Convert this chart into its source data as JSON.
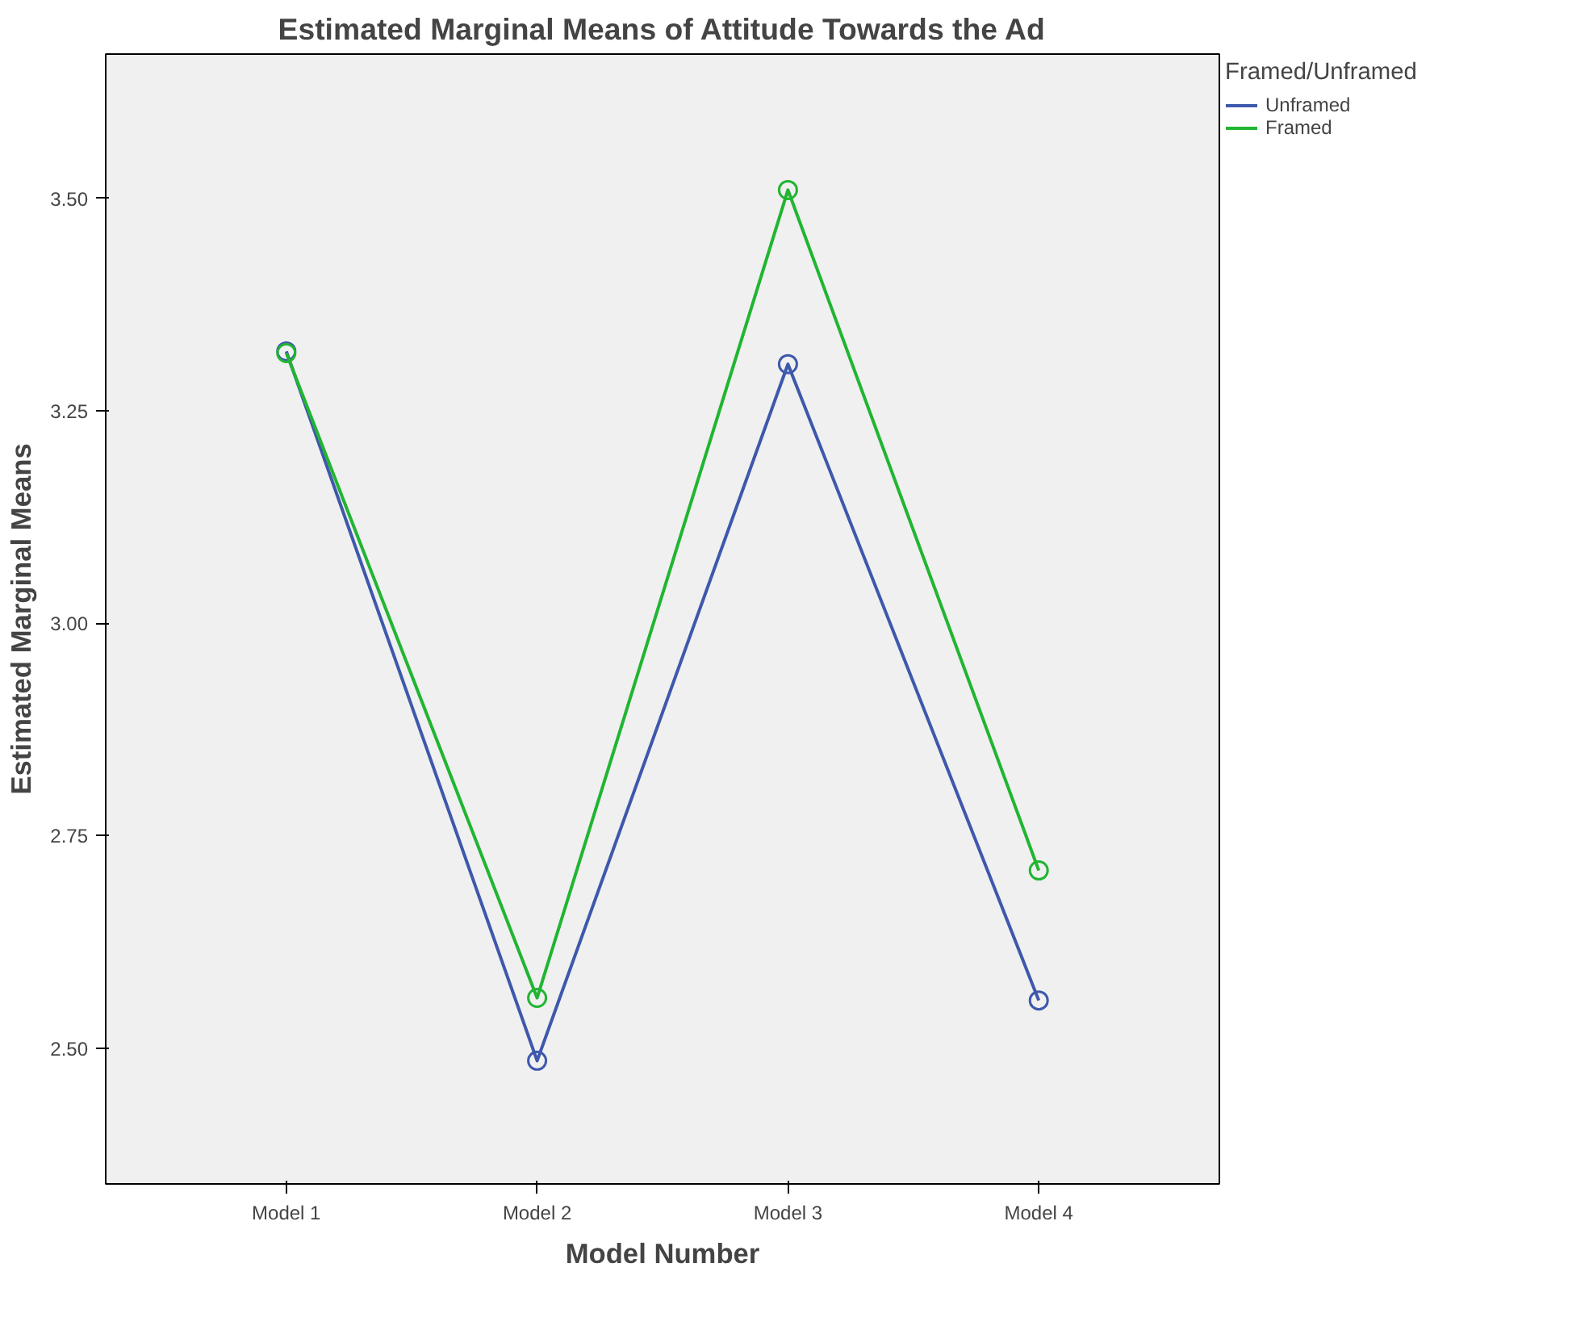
{
  "chart_data": {
    "type": "line",
    "title": "Estimated Marginal Means of Attitude Towards the Ad",
    "xlabel": "Model Number",
    "ylabel": "Estimated Marginal Means",
    "legend_title": "Framed/Unframed",
    "categories": [
      "Model 1",
      "Model 2",
      "Model 3",
      "Model 4"
    ],
    "series": [
      {
        "name": "Unframed",
        "color": "#3e58ac",
        "values": [
          3.32,
          2.485,
          3.305,
          2.556
        ]
      },
      {
        "name": "Framed",
        "color": "#21b532",
        "values": [
          3.318,
          2.559,
          3.51,
          2.709
        ]
      }
    ],
    "ylim": [
      2.34,
      3.67
    ],
    "yticks": [
      {
        "value": 2.5,
        "label": "2.50"
      },
      {
        "value": 2.75,
        "label": "2.75"
      },
      {
        "value": 3.0,
        "label": "3.00"
      },
      {
        "value": 3.25,
        "label": "3.25"
      },
      {
        "value": 3.5,
        "label": "3.50"
      }
    ],
    "grid": false,
    "legend": "top right",
    "marker": "circle",
    "line_style": "solid"
  }
}
